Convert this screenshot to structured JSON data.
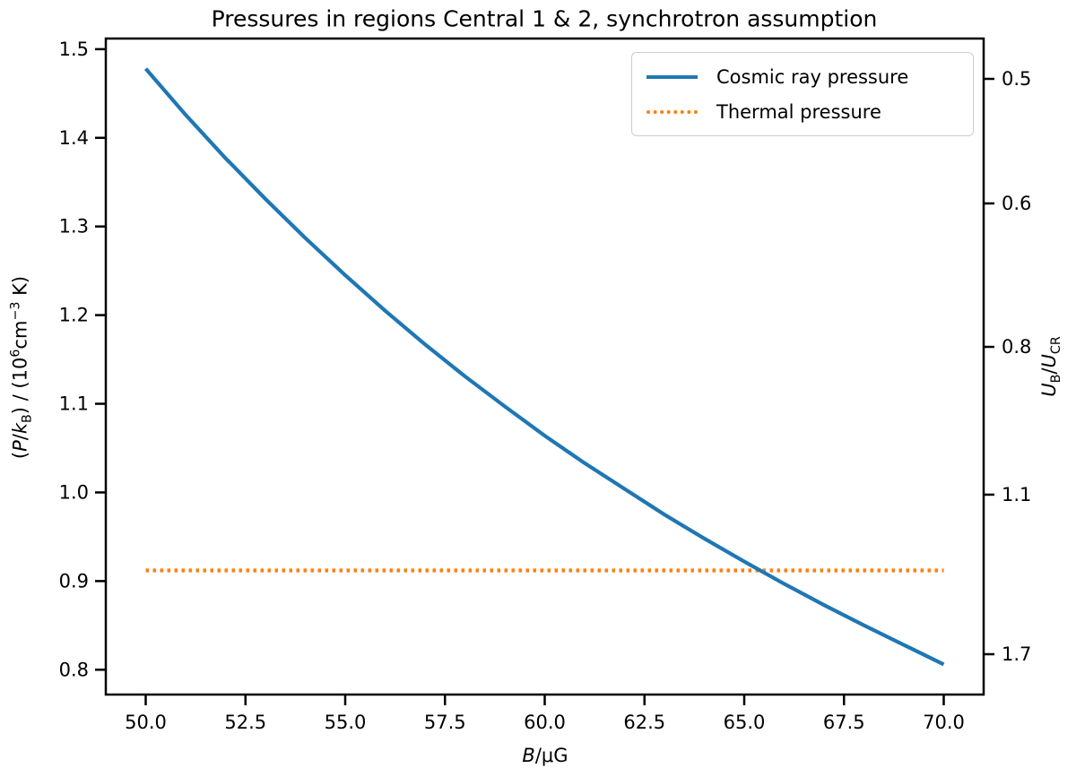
{
  "chart_data": {
    "type": "line",
    "title": "Pressures in regions Central 1 & 2, synchrotron assumption",
    "grid": false,
    "background_color": "#ffffff",
    "axis_color": "#000000",
    "text_color": "#000000",
    "legend": {
      "position": "upper right",
      "border_color": "#cccccc"
    },
    "xlabel_rich": [
      {
        "t": "B",
        "i": true
      },
      {
        "t": "/μG"
      }
    ],
    "ylabel_left_rich": [
      {
        "t": "("
      },
      {
        "t": "P",
        "i": true
      },
      {
        "t": "/"
      },
      {
        "t": "k",
        "i": true
      },
      {
        "t": "B",
        "sub": true
      },
      {
        "t": ") / (10"
      },
      {
        "t": "6",
        "sup": true
      },
      {
        "t": "cm"
      },
      {
        "t": "−3",
        "sup": true
      },
      {
        "t": " K)"
      }
    ],
    "ylabel_right_rich": [
      {
        "t": "U",
        "i": true
      },
      {
        "t": "B",
        "sub": true
      },
      {
        "t": "/"
      },
      {
        "t": "U",
        "i": true
      },
      {
        "t": "CR",
        "sub": true
      }
    ],
    "xlim": [
      49.0,
      71.0
    ],
    "ylim": [
      0.772,
      1.512
    ],
    "x_ticks": [
      {
        "label": "50.0",
        "v": 50.0
      },
      {
        "label": "52.5",
        "v": 52.5
      },
      {
        "label": "55.0",
        "v": 55.0
      },
      {
        "label": "57.5",
        "v": 57.5
      },
      {
        "label": "60.0",
        "v": 60.0
      },
      {
        "label": "62.5",
        "v": 62.5
      },
      {
        "label": "65.0",
        "v": 65.0
      },
      {
        "label": "67.5",
        "v": 67.5
      },
      {
        "label": "70.0",
        "v": 70.0
      }
    ],
    "y_ticks_left": [
      {
        "label": "0.8",
        "v": 0.8
      },
      {
        "label": "0.9",
        "v": 0.9
      },
      {
        "label": "1.0",
        "v": 1.0
      },
      {
        "label": "1.1",
        "v": 1.1
      },
      {
        "label": "1.2",
        "v": 1.2
      },
      {
        "label": "1.3",
        "v": 1.3
      },
      {
        "label": "1.4",
        "v": 1.4
      },
      {
        "label": "1.5",
        "v": 1.5
      }
    ],
    "y_ticks_right": [
      {
        "label": "0.5",
        "value": 0.5,
        "at_left_value": 1.4665
      },
      {
        "label": "0.6",
        "value": 0.6,
        "at_left_value": 1.326
      },
      {
        "label": "0.8",
        "value": 0.8,
        "at_left_value": 1.1642
      },
      {
        "label": "1.1",
        "value": 1.1,
        "at_left_value": 0.9975
      },
      {
        "label": "1.7",
        "value": 1.7,
        "at_left_value": 0.8175
      }
    ],
    "series": [
      {
        "name": "Cosmic ray pressure",
        "style": "solid",
        "color": "#1f77b4",
        "x": [
          50,
          51,
          52,
          53,
          54,
          55,
          56,
          57,
          58,
          59,
          60,
          61,
          62,
          63,
          64,
          65,
          66,
          67,
          68,
          69,
          70
        ],
        "y": [
          1.478,
          1.426,
          1.377,
          1.331,
          1.287,
          1.245,
          1.205,
          1.167,
          1.131,
          1.097,
          1.064,
          1.033,
          1.004,
          0.975,
          0.948,
          0.922,
          0.897,
          0.873,
          0.85,
          0.828,
          0.806
        ]
      },
      {
        "name": "Thermal pressure",
        "style": "dotted",
        "color": "#ff7f0e",
        "x": [
          50,
          70
        ],
        "y": [
          0.912,
          0.912
        ]
      }
    ],
    "annotations": {
      "curve_crossing_B": 65.4,
      "thermal_pressure_level": 0.912
    }
  }
}
